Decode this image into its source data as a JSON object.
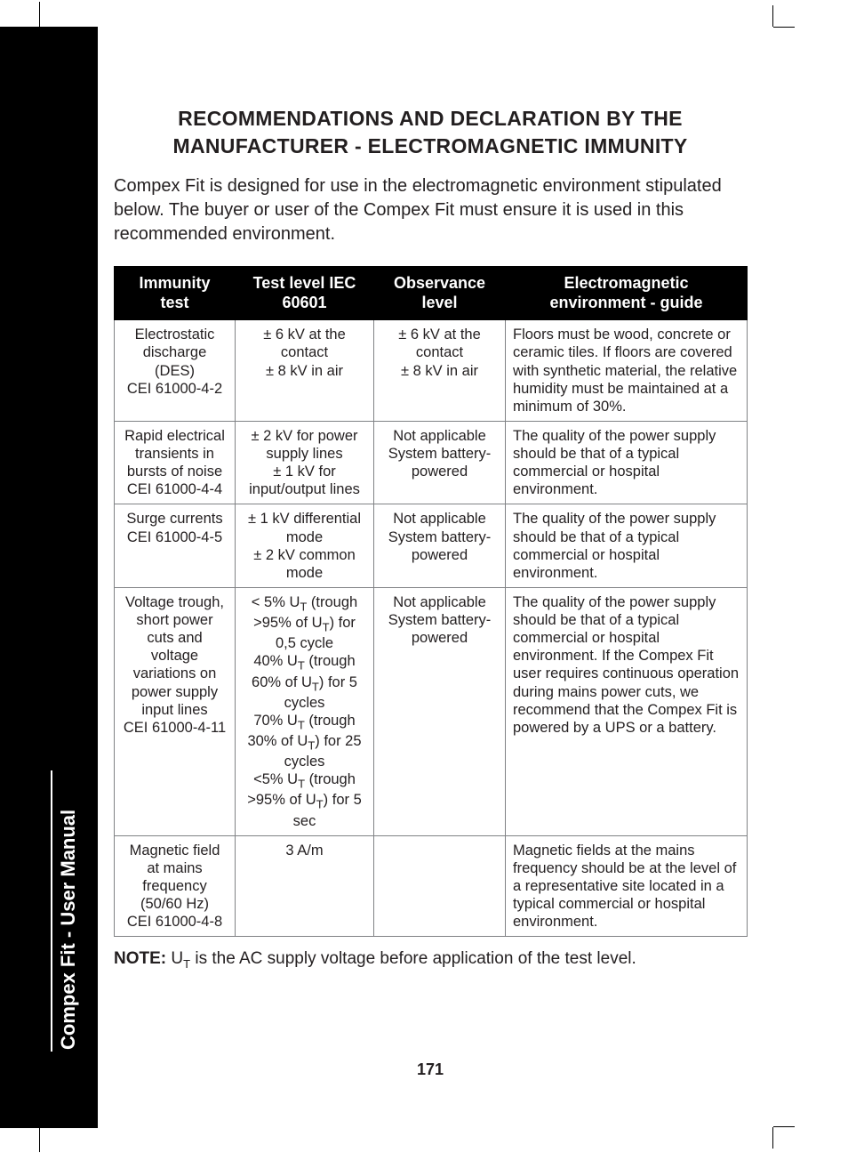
{
  "lang_code": "EN",
  "manual_label": "Compex Fit - User Manual",
  "title_line1": "RECOMMENDATIONS AND DECLARATION BY THE",
  "title_line2": "MANUFACTURER - ELECTROMAGNETIC IMMUNITY",
  "intro": "Compex Fit is designed for use in the electromagnetic environment stipulated below. The buyer or user of the Compex Fit must ensure it is used in this recommended environment.",
  "headers": {
    "c1a": "Immunity",
    "c1b": "test",
    "c2a": "Test level IEC",
    "c2b": "60601",
    "c3a": "Observance",
    "c3b": "level",
    "c4a": "Electromagnetic",
    "c4b": "environment - guide"
  },
  "rows": [
    {
      "c1": "Electrostatic discharge (DES)\nCEI 61000-4-2",
      "c2": "± 6 kV at the contact\n± 8 kV in air",
      "c3": "± 6 kV at the contact\n± 8 kV in air",
      "c4": "Floors must be wood, concrete or ceramic tiles. If floors are covered with synthetic material, the relative humidity must be maintained at a minimum of 30%."
    },
    {
      "c1": "Rapid electrical transients in bursts of noise\nCEI 61000-4-4",
      "c2": "± 2 kV for power supply lines\n± 1 kV for input/output lines",
      "c3": "Not applicable\nSystem battery-powered",
      "c4": "The quality of the power supply should be that of a typical commercial or hospital environment."
    },
    {
      "c1": "Surge currents\nCEI 61000-4-5",
      "c2": "± 1 kV differential mode\n± 2 kV common mode",
      "c3": "Not applicable\nSystem battery-powered",
      "c4": "The quality of the power supply should be that of a typical commercial or hospital environment."
    },
    {
      "c1": "Voltage trough, short power cuts and voltage variations on power supply input lines\nCEI 61000-4-11",
      "c2_html": "< 5% U<span class=\"sub\">T</span> (trough >95% of U<span class=\"sub\">T</span>) for 0,5 cycle<br>40% U<span class=\"sub\">T</span> (trough 60% of U<span class=\"sub\">T</span>) for 5 cycles<br>70% U<span class=\"sub\">T</span> (trough 30% of U<span class=\"sub\">T</span>) for 25 cycles<br><5% U<span class=\"sub\">T</span> (trough >95% of U<span class=\"sub\">T</span>) for 5 sec",
      "c3": "Not applicable\nSystem battery-powered",
      "c4": "The quality of the power supply should be that of a typical commercial or hospital environment. If the Compex Fit user requires continuous operation during mains power cuts, we recommend that the Compex Fit is powered by a UPS or a battery."
    },
    {
      "c1": "Magnetic field at mains frequency (50/60 Hz)\nCEI 61000-4-8",
      "c2": "3 A/m",
      "c3": "",
      "c4": "Magnetic fields at the mains frequency should be at the level of a representative site located in a typical commercial or hospital environment."
    }
  ],
  "note_label": "NOTE:",
  "note_html": "U<span class=\"sub\">T</span> is the AC supply voltage before application of the test level.",
  "page_number": "171"
}
